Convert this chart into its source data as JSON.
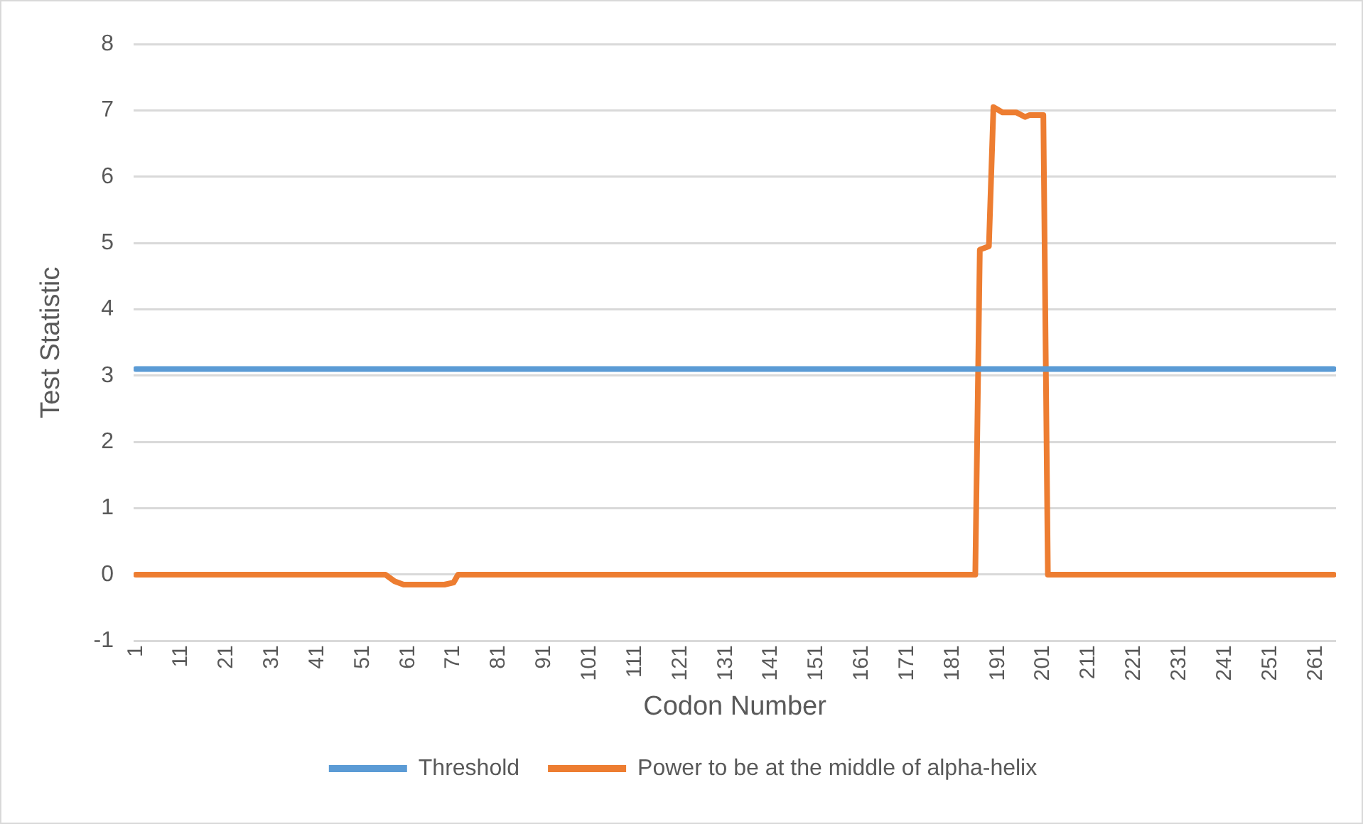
{
  "chart_data": {
    "type": "line",
    "xlabel": "Codon Number",
    "ylabel": "Test Statistic",
    "xlim": [
      0.5,
      265.5
    ],
    "xticks": [
      1,
      11,
      21,
      31,
      41,
      51,
      61,
      71,
      81,
      91,
      101,
      111,
      121,
      131,
      141,
      151,
      161,
      171,
      181,
      191,
      201,
      211,
      221,
      231,
      241,
      251,
      261
    ],
    "ylim": [
      -1,
      8
    ],
    "yticks": [
      -1,
      0,
      1,
      2,
      3,
      4,
      5,
      6,
      7,
      8
    ],
    "grid": "y",
    "legend": "bottom",
    "series": [
      {
        "name": "Threshold",
        "color": "#5b9bd5",
        "x": [
          1,
          265
        ],
        "values": [
          3.1,
          3.1
        ]
      },
      {
        "name": "Power to be at the middle of alpha-helix",
        "color": "#ed7d31",
        "x": [
          1,
          56,
          58,
          60,
          69,
          71,
          72,
          186,
          187,
          189,
          190,
          192,
          195,
          197,
          198,
          201,
          202,
          265
        ],
        "values": [
          0,
          0,
          -0.1,
          -0.15,
          -0.15,
          -0.12,
          0,
          0,
          4.9,
          4.95,
          7.05,
          6.97,
          6.97,
          6.9,
          6.93,
          6.93,
          0,
          0
        ]
      }
    ]
  }
}
